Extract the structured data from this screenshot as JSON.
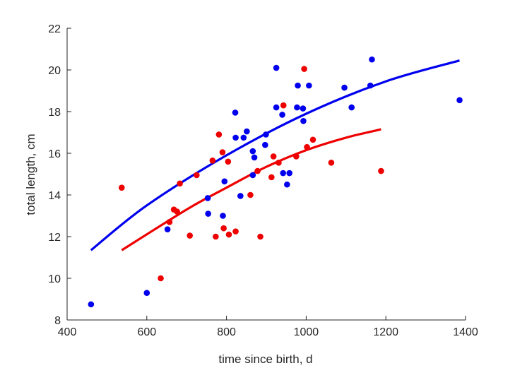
{
  "chart_data": {
    "type": "scatter",
    "xlabel": "time since birth, d",
    "ylabel": "total length, cm",
    "xlim": [
      400,
      1400
    ],
    "ylim": [
      8,
      22
    ],
    "xticks": [
      400,
      600,
      800,
      1000,
      1200,
      1400
    ],
    "yticks": [
      8,
      10,
      12,
      14,
      16,
      18,
      20,
      22
    ],
    "grid": false,
    "box": false,
    "series": [
      {
        "color": "#0000ee",
        "points": [
          [
            460,
            8.75
          ],
          [
            600,
            9.3
          ],
          [
            652,
            12.35
          ],
          [
            753,
            13.85
          ],
          [
            754,
            13.1
          ],
          [
            791,
            13.0
          ],
          [
            795,
            14.65
          ],
          [
            822,
            17.95
          ],
          [
            823,
            16.75
          ],
          [
            835,
            13.95
          ],
          [
            843,
            16.75
          ],
          [
            851,
            17.05
          ],
          [
            866,
            16.1
          ],
          [
            866,
            14.95
          ],
          [
            870,
            15.8
          ],
          [
            897,
            16.4
          ],
          [
            899,
            16.9
          ],
          [
            925,
            20.1
          ],
          [
            925,
            18.2
          ],
          [
            940,
            17.85
          ],
          [
            942,
            15.05
          ],
          [
            952,
            14.5
          ],
          [
            958,
            15.05
          ],
          [
            977,
            18.2
          ],
          [
            979,
            19.25
          ],
          [
            992,
            18.15
          ],
          [
            993,
            17.55
          ],
          [
            1007,
            19.25
          ],
          [
            1096,
            19.15
          ],
          [
            1114,
            18.2
          ],
          [
            1161,
            19.25
          ],
          [
            1165,
            20.5
          ],
          [
            1385,
            18.55
          ]
        ],
        "fit": [
          [
            460,
            11.35
          ],
          [
            600,
            13.5
          ],
          [
            800,
            15.9
          ],
          [
            1000,
            17.9
          ],
          [
            1200,
            19.45
          ],
          [
            1385,
            20.45
          ]
        ]
      },
      {
        "color": "#ee0000",
        "points": [
          [
            537,
            14.35
          ],
          [
            635,
            10.0
          ],
          [
            657,
            12.7
          ],
          [
            668,
            13.3
          ],
          [
            676,
            13.2
          ],
          [
            683,
            14.55
          ],
          [
            708,
            12.05
          ],
          [
            725,
            14.95
          ],
          [
            765,
            15.65
          ],
          [
            773,
            12.0
          ],
          [
            781,
            16.9
          ],
          [
            790,
            16.05
          ],
          [
            793,
            12.4
          ],
          [
            804,
            15.6
          ],
          [
            806,
            12.1
          ],
          [
            823,
            12.25
          ],
          [
            860,
            14.0
          ],
          [
            878,
            15.15
          ],
          [
            885,
            12.0
          ],
          [
            913,
            14.85
          ],
          [
            918,
            15.85
          ],
          [
            931,
            15.55
          ],
          [
            943,
            18.3
          ],
          [
            975,
            15.85
          ],
          [
            995,
            20.05
          ],
          [
            1002,
            16.3
          ],
          [
            1017,
            16.65
          ],
          [
            1063,
            15.55
          ],
          [
            1188,
            15.15
          ]
        ],
        "fit": [
          [
            537,
            11.35
          ],
          [
            700,
            13.3
          ],
          [
            800,
            14.35
          ],
          [
            900,
            15.35
          ],
          [
            1000,
            16.15
          ],
          [
            1100,
            16.75
          ],
          [
            1188,
            17.15
          ]
        ]
      }
    ]
  }
}
